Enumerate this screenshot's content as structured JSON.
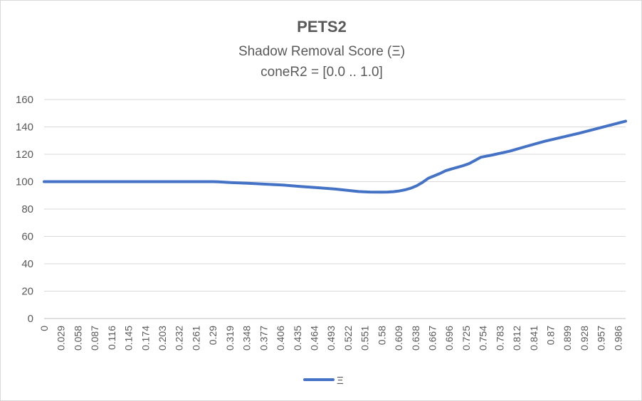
{
  "chart_data": {
    "type": "line",
    "title": "PETS2",
    "subtitle_lines": [
      "Shadow Removal Score (Ξ)",
      "coneR2 = [0.0 .. 1.0]"
    ],
    "xlabel": "",
    "ylabel": "",
    "ylim": [
      0,
      160
    ],
    "y_ticks": [
      "0",
      "20",
      "40",
      "60",
      "80",
      "100",
      "120",
      "140",
      "160"
    ],
    "x_tick_labels": [
      "0",
      "0.029",
      "0.058",
      "0.087",
      "0.116",
      "0.145",
      "0.174",
      "0.203",
      "0.232",
      "0.261",
      "0.29",
      "0.319",
      "0.348",
      "0.377",
      "0.406",
      "0.435",
      "0.464",
      "0.493",
      "0.522",
      "0.551",
      "0.58",
      "0.609",
      "0.638",
      "0.667",
      "0.696",
      "0.725",
      "0.754",
      "0.783",
      "0.812",
      "0.841",
      "0.87",
      "0.899",
      "0.928",
      "0.957",
      "0.986"
    ],
    "xlim": [
      0,
      0.999
    ],
    "grid": true,
    "legend_position": "bottom",
    "series": [
      {
        "name": "Ξ",
        "color": "#4472c4",
        "x": [
          0,
          0.1,
          0.2,
          0.29,
          0.3,
          0.32,
          0.35,
          0.38,
          0.41,
          0.44,
          0.47,
          0.5,
          0.52,
          0.54,
          0.56,
          0.58,
          0.59,
          0.6,
          0.61,
          0.62,
          0.63,
          0.64,
          0.65,
          0.66,
          0.67,
          0.68,
          0.69,
          0.7,
          0.71,
          0.72,
          0.73,
          0.74,
          0.75,
          0.77,
          0.8,
          0.83,
          0.86,
          0.89,
          0.92,
          0.95,
          0.97,
          0.999
        ],
        "y": [
          100,
          100,
          100,
          100,
          99.9,
          99.3,
          98.8,
          98.2,
          97.5,
          96.5,
          95.6,
          94.6,
          93.7,
          92.8,
          92.4,
          92.3,
          92.4,
          92.7,
          93.2,
          94,
          95.2,
          97,
          99.5,
          102.5,
          104.2,
          106,
          108,
          109.3,
          110.5,
          111.7,
          113.2,
          115.5,
          117.8,
          119.5,
          122.3,
          126,
          129.5,
          132.5,
          135.5,
          138.8,
          141,
          144.2
        ]
      }
    ]
  }
}
